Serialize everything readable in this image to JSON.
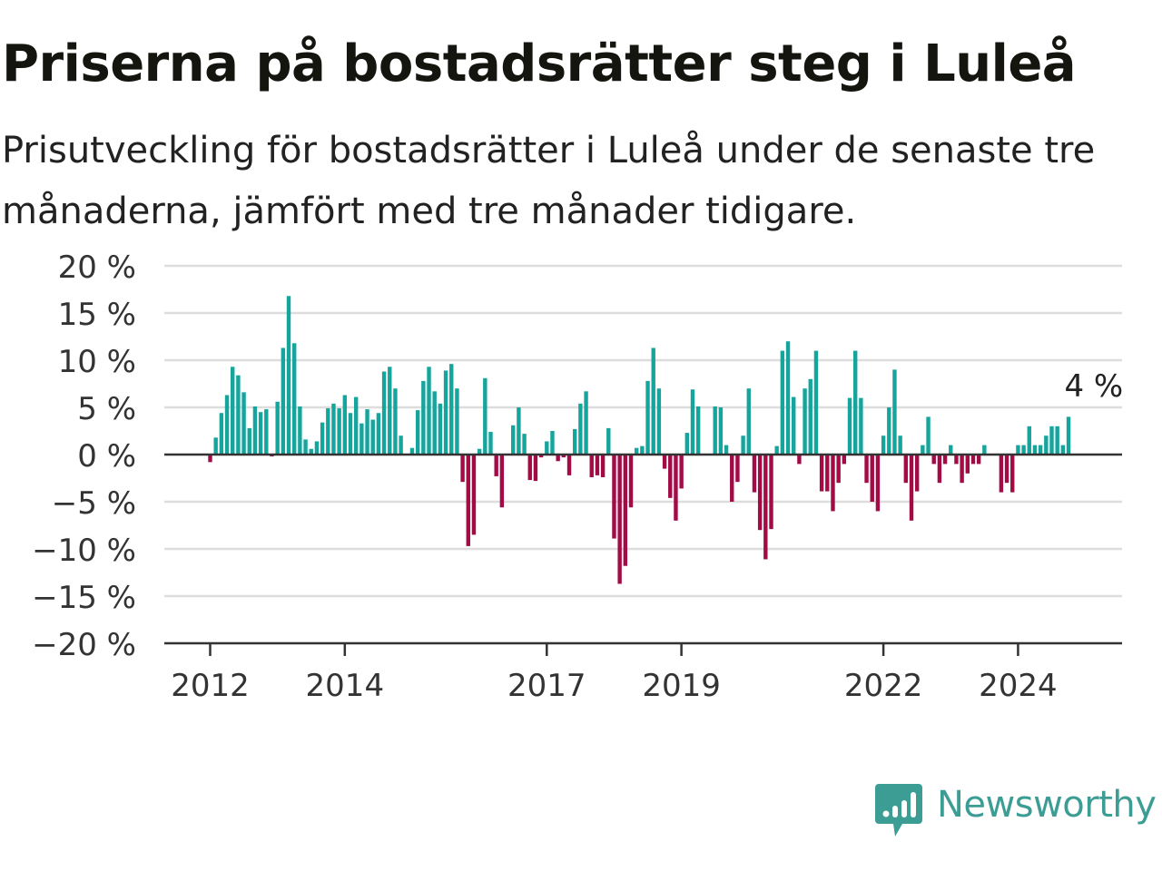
{
  "title": "Priserna på bostadsrätter steg i Luleå",
  "subtitle": "Prisutveckling för bostadsrätter i Luleå under de senaste tre månaderna, jämfört med tre månader tidigare.",
  "brand": {
    "name": "Newsworthy",
    "color": "#3c9d95"
  },
  "colors": {
    "positive": "#16a59d",
    "negative": "#a30b47",
    "grid": "#dddddd",
    "axis": "#333333"
  },
  "chart_data": {
    "type": "bar",
    "title": "Priserna på bostadsrätter steg i Luleå",
    "xlabel": "",
    "ylabel": "",
    "y_unit": "%",
    "ylim": [
      -20,
      20
    ],
    "y_ticks": [
      {
        "value": 20,
        "label": "20 %"
      },
      {
        "value": 15,
        "label": "15 %"
      },
      {
        "value": 10,
        "label": "10 %"
      },
      {
        "value": 5,
        "label": "5 %"
      },
      {
        "value": 0,
        "label": "0 %"
      },
      {
        "value": -5,
        "label": "−5 %"
      },
      {
        "value": -10,
        "label": "−10 %"
      },
      {
        "value": -15,
        "label": "−15 %"
      },
      {
        "value": -20,
        "label": "−20 %"
      }
    ],
    "x_ticks": [
      {
        "x": "2012-01",
        "label": "2012"
      },
      {
        "x": "2014-01",
        "label": "2014"
      },
      {
        "x": "2017-01",
        "label": "2017"
      },
      {
        "x": "2019-01",
        "label": "2019"
      },
      {
        "x": "2022-01",
        "label": "2022"
      },
      {
        "x": "2024-01",
        "label": "2024"
      }
    ],
    "grid": true,
    "annotation": {
      "x": "2024-09",
      "text": "4 %"
    },
    "series": [
      {
        "values": [
          {
            "x": "2012-01",
            "y": -0.8
          },
          {
            "x": "2012-02",
            "y": 1.8
          },
          {
            "x": "2012-03",
            "y": 4.4
          },
          {
            "x": "2012-04",
            "y": 6.3
          },
          {
            "x": "2012-05",
            "y": 9.3
          },
          {
            "x": "2012-06",
            "y": 8.4
          },
          {
            "x": "2012-07",
            "y": 6.6
          },
          {
            "x": "2012-08",
            "y": 2.8
          },
          {
            "x": "2012-09",
            "y": 5.1
          },
          {
            "x": "2012-10",
            "y": 4.5
          },
          {
            "x": "2012-11",
            "y": 4.8
          },
          {
            "x": "2012-12",
            "y": -0.2
          },
          {
            "x": "2013-01",
            "y": 5.6
          },
          {
            "x": "2013-02",
            "y": 11.3
          },
          {
            "x": "2013-03",
            "y": 16.8
          },
          {
            "x": "2013-04",
            "y": 11.8
          },
          {
            "x": "2013-05",
            "y": 5.1
          },
          {
            "x": "2013-06",
            "y": 1.6
          },
          {
            "x": "2013-07",
            "y": 0.6
          },
          {
            "x": "2013-08",
            "y": 1.4
          },
          {
            "x": "2013-09",
            "y": 3.4
          },
          {
            "x": "2013-10",
            "y": 4.9
          },
          {
            "x": "2013-11",
            "y": 5.4
          },
          {
            "x": "2013-12",
            "y": 4.9
          },
          {
            "x": "2014-01",
            "y": 6.3
          },
          {
            "x": "2014-02",
            "y": 4.4
          },
          {
            "x": "2014-03",
            "y": 6.1
          },
          {
            "x": "2014-04",
            "y": 3.3
          },
          {
            "x": "2014-05",
            "y": 4.8
          },
          {
            "x": "2014-06",
            "y": 3.7
          },
          {
            "x": "2014-07",
            "y": 4.4
          },
          {
            "x": "2014-08",
            "y": 8.8
          },
          {
            "x": "2014-09",
            "y": 9.3
          },
          {
            "x": "2014-10",
            "y": 7.0
          },
          {
            "x": "2014-11",
            "y": 2.0
          },
          {
            "x": "2015-01",
            "y": 0.7
          },
          {
            "x": "2015-02",
            "y": 4.7
          },
          {
            "x": "2015-03",
            "y": 7.8
          },
          {
            "x": "2015-04",
            "y": 9.3
          },
          {
            "x": "2015-05",
            "y": 6.7
          },
          {
            "x": "2015-06",
            "y": 5.4
          },
          {
            "x": "2015-07",
            "y": 8.9
          },
          {
            "x": "2015-08",
            "y": 9.6
          },
          {
            "x": "2015-09",
            "y": 7.0
          },
          {
            "x": "2015-10",
            "y": -2.9
          },
          {
            "x": "2015-11",
            "y": -9.7
          },
          {
            "x": "2015-12",
            "y": -8.5
          },
          {
            "x": "2016-01",
            "y": 0.6
          },
          {
            "x": "2016-02",
            "y": 8.1
          },
          {
            "x": "2016-03",
            "y": 2.4
          },
          {
            "x": "2016-04",
            "y": -2.3
          },
          {
            "x": "2016-05",
            "y": -5.6
          },
          {
            "x": "2016-07",
            "y": 3.1
          },
          {
            "x": "2016-08",
            "y": 5.0
          },
          {
            "x": "2016-09",
            "y": 2.2
          },
          {
            "x": "2016-10",
            "y": -2.7
          },
          {
            "x": "2016-11",
            "y": -2.8
          },
          {
            "x": "2016-12",
            "y": -0.3
          },
          {
            "x": "2017-01",
            "y": 1.4
          },
          {
            "x": "2017-02",
            "y": 2.5
          },
          {
            "x": "2017-03",
            "y": -0.7
          },
          {
            "x": "2017-04",
            "y": -0.3
          },
          {
            "x": "2017-05",
            "y": -2.2
          },
          {
            "x": "2017-06",
            "y": 2.7
          },
          {
            "x": "2017-07",
            "y": 5.4
          },
          {
            "x": "2017-08",
            "y": 6.7
          },
          {
            "x": "2017-09",
            "y": -2.4
          },
          {
            "x": "2017-10",
            "y": -2.2
          },
          {
            "x": "2017-11",
            "y": -2.4
          },
          {
            "x": "2017-12",
            "y": 2.8
          },
          {
            "x": "2018-01",
            "y": -8.9
          },
          {
            "x": "2018-02",
            "y": -13.7
          },
          {
            "x": "2018-03",
            "y": -11.8
          },
          {
            "x": "2018-04",
            "y": -5.6
          },
          {
            "x": "2018-05",
            "y": 0.7
          },
          {
            "x": "2018-06",
            "y": 0.9
          },
          {
            "x": "2018-07",
            "y": 7.8
          },
          {
            "x": "2018-08",
            "y": 11.3
          },
          {
            "x": "2018-09",
            "y": 7.0
          },
          {
            "x": "2018-10",
            "y": -1.5
          },
          {
            "x": "2018-11",
            "y": -4.6
          },
          {
            "x": "2018-12",
            "y": -7.0
          },
          {
            "x": "2019-01",
            "y": -3.6
          },
          {
            "x": "2019-02",
            "y": 2.3
          },
          {
            "x": "2019-03",
            "y": 6.9
          },
          {
            "x": "2019-04",
            "y": 5.1
          },
          {
            "x": "2019-07",
            "y": 5.1
          },
          {
            "x": "2019-08",
            "y": 5.0
          },
          {
            "x": "2019-09",
            "y": 1.0
          },
          {
            "x": "2019-10",
            "y": -5.0
          },
          {
            "x": "2019-11",
            "y": -2.9
          },
          {
            "x": "2019-12",
            "y": 2.0
          },
          {
            "x": "2020-01",
            "y": 7.0
          },
          {
            "x": "2020-02",
            "y": -4.0
          },
          {
            "x": "2020-03",
            "y": -8.0
          },
          {
            "x": "2020-04",
            "y": -11.1
          },
          {
            "x": "2020-05",
            "y": -7.9
          },
          {
            "x": "2020-06",
            "y": 0.9
          },
          {
            "x": "2020-07",
            "y": 11.0
          },
          {
            "x": "2020-08",
            "y": 12.0
          },
          {
            "x": "2020-09",
            "y": 6.1
          },
          {
            "x": "2020-10",
            "y": -1.0
          },
          {
            "x": "2020-11",
            "y": 7.0
          },
          {
            "x": "2020-12",
            "y": 8.0
          },
          {
            "x": "2021-01",
            "y": 11.0
          },
          {
            "x": "2021-02",
            "y": -3.9
          },
          {
            "x": "2021-03",
            "y": -3.9
          },
          {
            "x": "2021-04",
            "y": -6.0
          },
          {
            "x": "2021-05",
            "y": -3.0
          },
          {
            "x": "2021-06",
            "y": -1.0
          },
          {
            "x": "2021-07",
            "y": 6.0
          },
          {
            "x": "2021-08",
            "y": 11.0
          },
          {
            "x": "2021-09",
            "y": 6.0
          },
          {
            "x": "2021-10",
            "y": -3.0
          },
          {
            "x": "2021-11",
            "y": -5.0
          },
          {
            "x": "2021-12",
            "y": -6.0
          },
          {
            "x": "2022-01",
            "y": 2.0
          },
          {
            "x": "2022-02",
            "y": 5.0
          },
          {
            "x": "2022-03",
            "y": 9.0
          },
          {
            "x": "2022-04",
            "y": 2.0
          },
          {
            "x": "2022-05",
            "y": -3.0
          },
          {
            "x": "2022-06",
            "y": -7.0
          },
          {
            "x": "2022-07",
            "y": -3.9
          },
          {
            "x": "2022-08",
            "y": 1.0
          },
          {
            "x": "2022-09",
            "y": 4.0
          },
          {
            "x": "2022-10",
            "y": -1.0
          },
          {
            "x": "2022-11",
            "y": -3.0
          },
          {
            "x": "2022-12",
            "y": -1.0
          },
          {
            "x": "2023-01",
            "y": 1.0
          },
          {
            "x": "2023-02",
            "y": -1.0
          },
          {
            "x": "2023-03",
            "y": -3.0
          },
          {
            "x": "2023-04",
            "y": -2.0
          },
          {
            "x": "2023-05",
            "y": -1.0
          },
          {
            "x": "2023-06",
            "y": -1.0
          },
          {
            "x": "2023-07",
            "y": 1.0
          },
          {
            "x": "2023-10",
            "y": -4.0
          },
          {
            "x": "2023-11",
            "y": -3.0
          },
          {
            "x": "2023-12",
            "y": -4.0
          },
          {
            "x": "2024-01",
            "y": 1.0
          },
          {
            "x": "2024-02",
            "y": 1.0
          },
          {
            "x": "2024-03",
            "y": 3.0
          },
          {
            "x": "2024-04",
            "y": 1.0
          },
          {
            "x": "2024-05",
            "y": 1.0
          },
          {
            "x": "2024-06",
            "y": 2.0
          },
          {
            "x": "2024-07",
            "y": 3.0
          },
          {
            "x": "2024-08",
            "y": 3.0
          },
          {
            "x": "2024-09",
            "y": 1.0
          },
          {
            "x": "2024-10",
            "y": 4.0
          }
        ]
      }
    ]
  }
}
